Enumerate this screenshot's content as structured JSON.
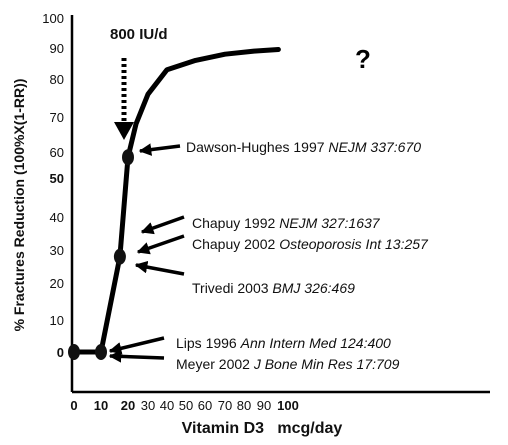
{
  "chart_data": {
    "type": "line",
    "title": "",
    "xlabel": "Vitamin D3   mcg/day",
    "ylabel": "% Fractures Reduction  (100%X(1-RR))",
    "xlim": [
      0,
      100
    ],
    "ylim": [
      0,
      100
    ],
    "x_ticks": [
      "0",
      "10",
      "20",
      "30",
      "40",
      "50",
      "60",
      "70",
      "80",
      "90",
      "100"
    ],
    "y_ticks": [
      "100",
      "90",
      "80",
      "70",
      "60",
      "50",
      "40",
      "30",
      "20",
      "10",
      "0"
    ],
    "series": [
      {
        "values": [
          {
            "x": 0,
            "y": 0
          },
          {
            "x": 10,
            "y": 0
          },
          {
            "x": 17,
            "y": 28
          },
          {
            "x": 20,
            "y": 58
          },
          {
            "x": 24,
            "y": 68
          },
          {
            "x": 30,
            "y": 76
          },
          {
            "x": 40,
            "y": 83
          },
          {
            "x": 55,
            "y": 86
          },
          {
            "x": 70,
            "y": 88
          },
          {
            "x": 85,
            "y": 89
          },
          {
            "x": 96,
            "y": 89.5
          }
        ]
      }
    ],
    "points": [
      {
        "x": 0,
        "y": 0
      },
      {
        "x": 10,
        "y": 0
      },
      {
        "x": 17,
        "y": 28
      },
      {
        "x": 20,
        "y": 58
      }
    ],
    "top_annotation": {
      "label": "800 IU/d",
      "x": 20
    },
    "question_mark": "?",
    "annotations": [
      {
        "author": "Dawson-Hughes 1997",
        "ref": "NEJM 337:670"
      },
      {
        "author": "Chapuy 1992",
        "ref": "NEJM 327:1637"
      },
      {
        "author": "Chapuy 2002",
        "ref": "Osteoporosis Int 13:257"
      },
      {
        "author": "Trivedi 2003",
        "ref": "BMJ 326:469"
      },
      {
        "author": "Lips 1996",
        "ref": "Ann Intern Med 124:400"
      },
      {
        "author": "Meyer 2002",
        "ref": "J Bone Min Res 17:709"
      }
    ]
  }
}
